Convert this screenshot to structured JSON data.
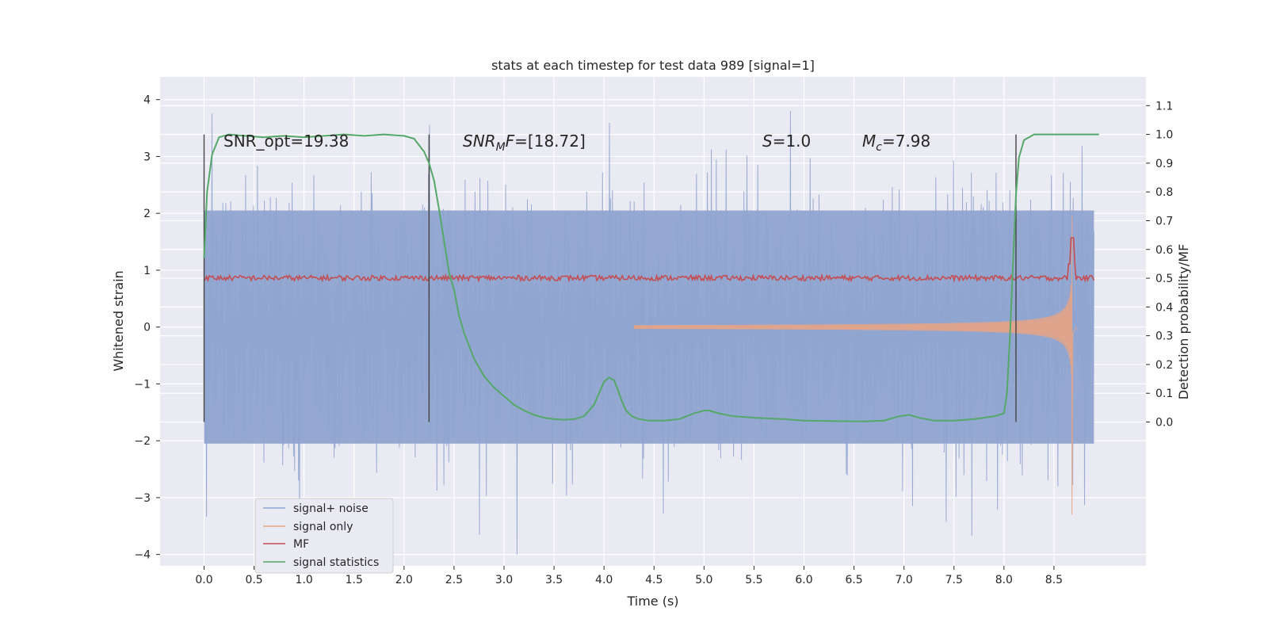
{
  "chart_data": {
    "type": "line",
    "title": "stats at each timestep for test data 989 [signal=1]",
    "xlabel": "Time (s)",
    "ylabel": "Whitened strain",
    "y2label": "Detection probability/MF",
    "xlim": [
      -0.44,
      9.42
    ],
    "ylim": [
      -4.2,
      4.4
    ],
    "y2lim": [
      -0.5,
      1.2
    ],
    "xticks": [
      "0.0",
      "0.5",
      "1.0",
      "1.5",
      "2.0",
      "2.5",
      "3.0",
      "3.5",
      "4.0",
      "4.5",
      "5.0",
      "5.5",
      "6.0",
      "6.5",
      "7.0",
      "7.5",
      "8.0",
      "8.5"
    ],
    "xtick_values": [
      0.0,
      0.5,
      1.0,
      1.5,
      2.0,
      2.5,
      3.0,
      3.5,
      4.0,
      4.5,
      5.0,
      5.5,
      6.0,
      6.5,
      7.0,
      7.5,
      8.0,
      8.5
    ],
    "yticks": [
      "−4",
      "−3",
      "−2",
      "−1",
      "0",
      "1",
      "2",
      "3",
      "4"
    ],
    "ytick_values": [
      -4,
      -3,
      -2,
      -1,
      0,
      1,
      2,
      3,
      4
    ],
    "y2ticks": [
      "0.0",
      "0.1",
      "0.2",
      "0.3",
      "0.4",
      "0.5",
      "0.6",
      "0.7",
      "0.8",
      "0.9",
      "1.0",
      "1.1"
    ],
    "y2tick_values": [
      0.0,
      0.1,
      0.2,
      0.3,
      0.4,
      0.5,
      0.6,
      0.7,
      0.8,
      0.9,
      1.0,
      1.1
    ],
    "grid": true,
    "legend_position": "lower-left",
    "legend": [
      {
        "label": "signal+ noise",
        "color": "#8fa4cf"
      },
      {
        "label": "signal only",
        "color": "#e8a484"
      },
      {
        "label": "MF",
        "color": "#c44e52"
      },
      {
        "label": "signal statistics",
        "color": "#55a868"
      }
    ],
    "annotations": {
      "snr_opt": "SNR_opt=19.38",
      "snr_mf_italic": "SNR",
      "snr_mf_sub": "M",
      "snr_mf_italic2": "F",
      "snr_mf_value": "=[18.72]",
      "s_label": "S",
      "s_value": "=1.0",
      "mc_label": "M",
      "mc_sub": "c",
      "mc_value": "=7.98"
    },
    "vertical_lines_x": [
      0.0,
      2.25,
      8.12
    ],
    "noise": {
      "t_start": 0.0,
      "t_end": 8.9,
      "typical_range": [
        -2.2,
        2.2
      ],
      "peak_max": 4.0,
      "peak_min": -3.8
    },
    "signal_only": {
      "t_start": 4.3,
      "t_merger": 8.68,
      "peak_max": 1.95,
      "peak_min": -3.3
    },
    "mf_series": {
      "baseline": 0.5,
      "peak_t": 8.68,
      "peak_value": 0.64
    },
    "series": [
      {
        "name": "signal statistics",
        "axis": "y2",
        "x": [
          0.0,
          0.03,
          0.08,
          0.15,
          0.25,
          0.4,
          0.6,
          0.8,
          1.0,
          1.2,
          1.4,
          1.6,
          1.8,
          2.0,
          2.1,
          2.2,
          2.25,
          2.3,
          2.35,
          2.4,
          2.45,
          2.5,
          2.55,
          2.6,
          2.7,
          2.8,
          2.9,
          3.0,
          3.1,
          3.2,
          3.3,
          3.4,
          3.5,
          3.6,
          3.7,
          3.8,
          3.9,
          3.95,
          4.0,
          4.05,
          4.1,
          4.13,
          4.17,
          4.22,
          4.28,
          4.35,
          4.45,
          4.6,
          4.75,
          4.9,
          5.0,
          5.05,
          5.15,
          5.3,
          5.5,
          5.8,
          6.0,
          6.3,
          6.6,
          6.8,
          6.95,
          7.05,
          7.15,
          7.3,
          7.5,
          7.7,
          7.9,
          8.0,
          8.03,
          8.06,
          8.09,
          8.12,
          8.15,
          8.2,
          8.25,
          8.3,
          8.4,
          8.6,
          8.8,
          8.95
        ],
        "y": [
          0.57,
          0.8,
          0.93,
          0.99,
          1.0,
          0.995,
          0.99,
          0.995,
          0.99,
          0.995,
          1.0,
          0.995,
          1.0,
          0.995,
          0.985,
          0.94,
          0.9,
          0.84,
          0.74,
          0.63,
          0.52,
          0.46,
          0.37,
          0.31,
          0.22,
          0.16,
          0.12,
          0.09,
          0.06,
          0.04,
          0.025,
          0.015,
          0.01,
          0.008,
          0.01,
          0.02,
          0.06,
          0.1,
          0.14,
          0.155,
          0.145,
          0.12,
          0.08,
          0.04,
          0.02,
          0.01,
          0.005,
          0.005,
          0.01,
          0.03,
          0.04,
          0.04,
          0.03,
          0.02,
          0.015,
          0.01,
          0.005,
          0.003,
          0.002,
          0.005,
          0.02,
          0.025,
          0.015,
          0.005,
          0.005,
          0.01,
          0.02,
          0.03,
          0.1,
          0.3,
          0.55,
          0.79,
          0.92,
          0.98,
          0.99,
          1.0,
          1.0,
          1.0,
          1.0,
          1.0
        ]
      }
    ]
  }
}
